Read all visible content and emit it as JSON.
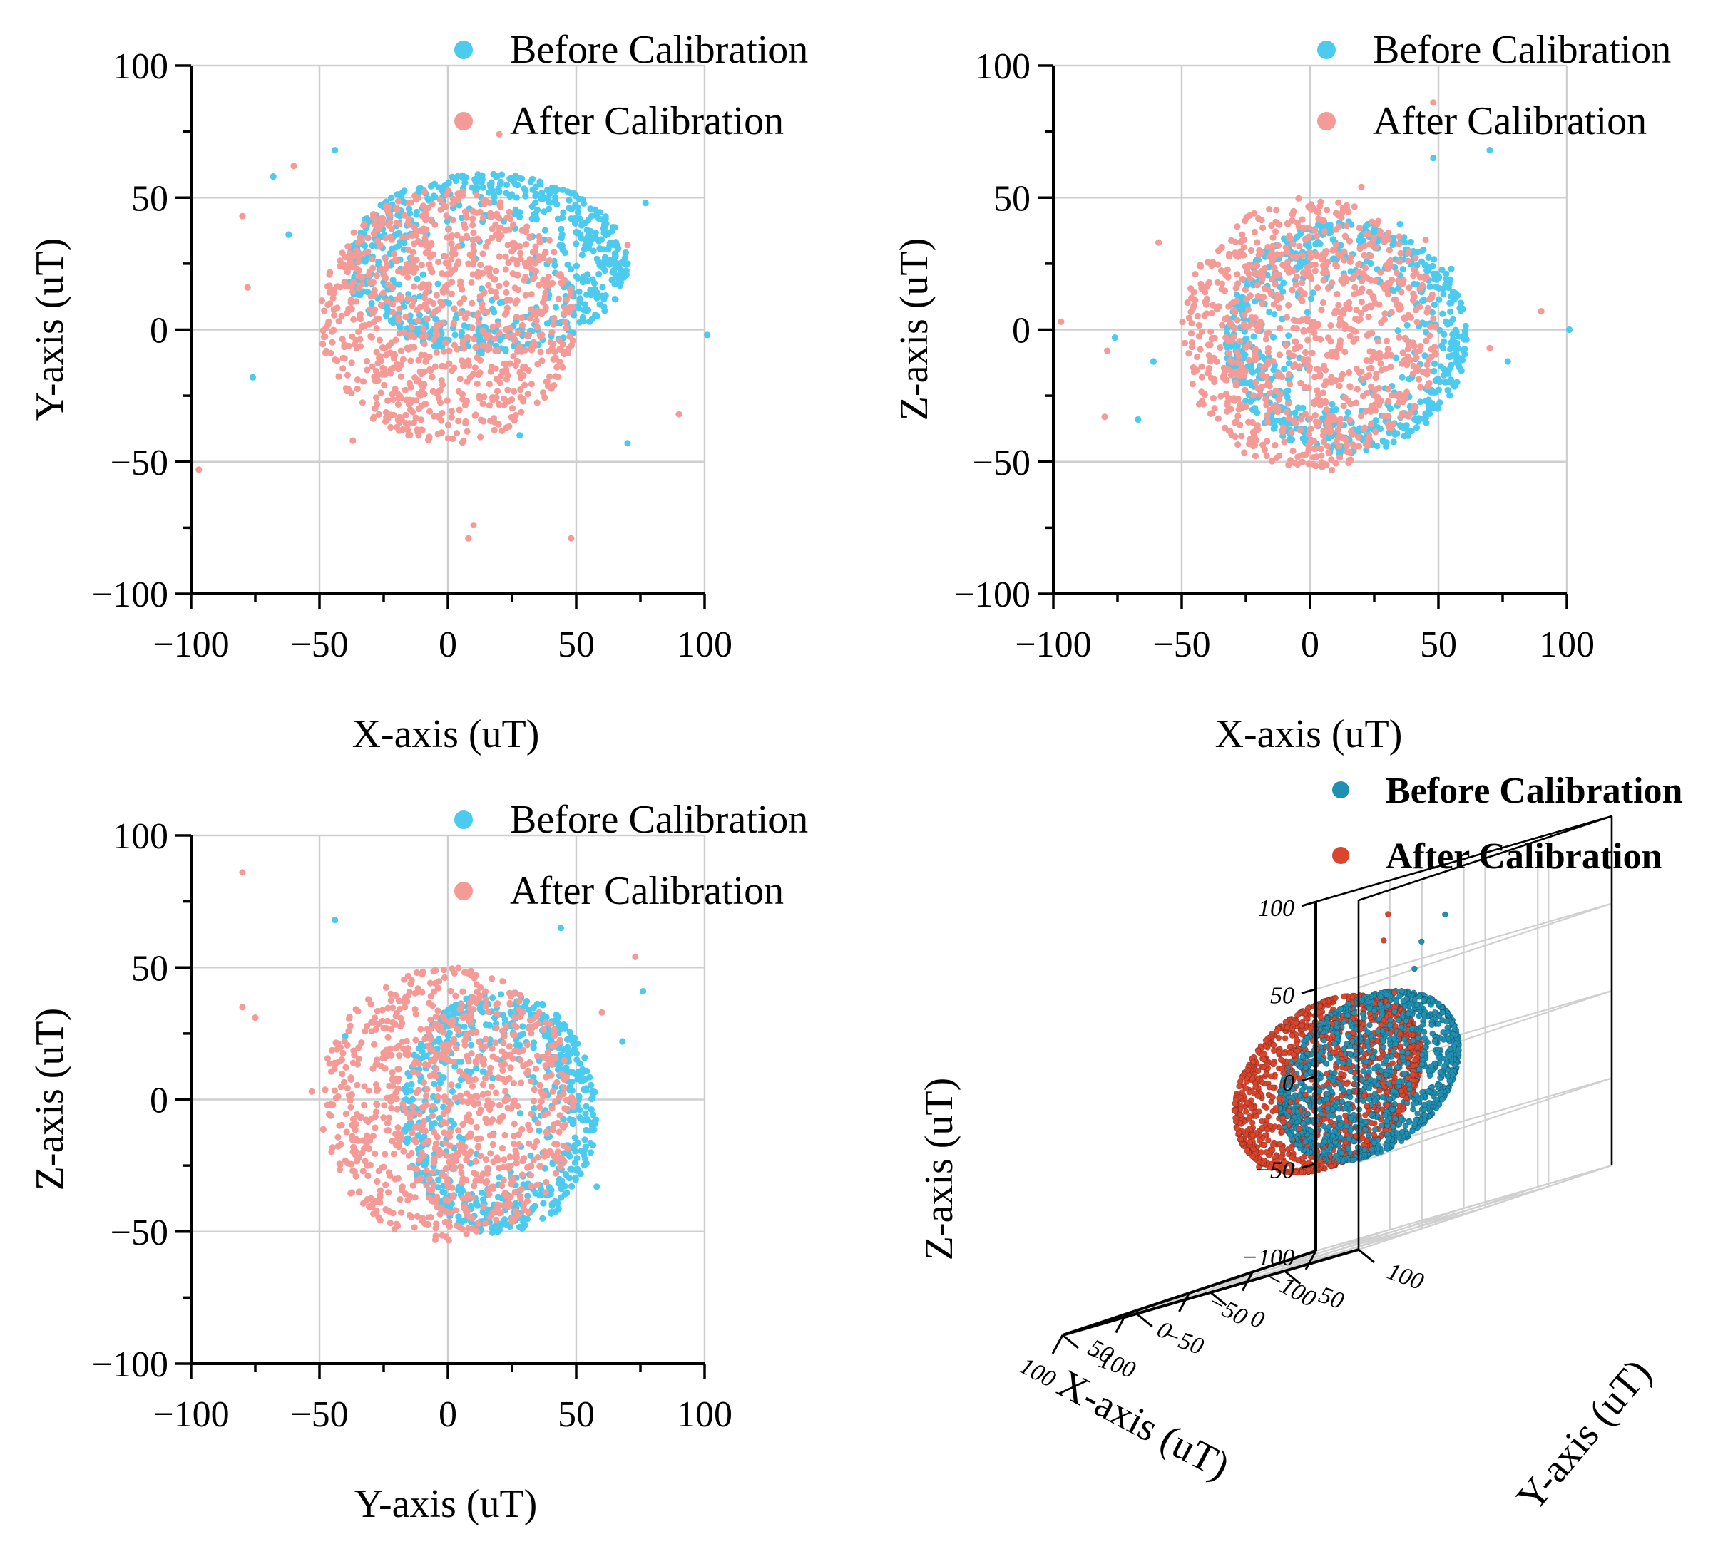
{
  "chart_data": [
    {
      "type": "scatter",
      "id": "xy",
      "xlabel": "X-axis (uT)",
      "ylabel": "Y-axis (uT)",
      "xlim": [
        -100,
        100
      ],
      "ylim": [
        -100,
        100
      ],
      "xticks": [
        "−100",
        "−50",
        "0",
        "50",
        "100"
      ],
      "yticks": [
        "100",
        "50",
        "0",
        "−50",
        "−100"
      ],
      "grid": true,
      "legend_position": "top-right",
      "series": [
        {
          "name": "Before Calibration",
          "color": "#4ccbee",
          "center": [
            15,
            25
          ],
          "radius": [
            55,
            34
          ],
          "count": 700,
          "edge_dense": true,
          "outliers": [
            [
              -68,
              58
            ],
            [
              -44,
              68
            ],
            [
              -62,
              36
            ],
            [
              -76,
              -18
            ],
            [
              77,
              48
            ],
            [
              101,
              -2
            ],
            [
              70,
              -43
            ],
            [
              28,
              -40
            ]
          ]
        },
        {
          "name": "After Calibration",
          "color": "#f59b97",
          "center": [
            0,
            5
          ],
          "radius": [
            50,
            48
          ],
          "count": 900,
          "edge_dense": false,
          "outliers": [
            [
              -60,
              62
            ],
            [
              -80,
              43
            ],
            [
              -78,
              16
            ],
            [
              -97,
              -53
            ],
            [
              -37,
              -42
            ],
            [
              10,
              -74
            ],
            [
              8,
              -79
            ],
            [
              48,
              -79
            ],
            [
              70,
              32
            ],
            [
              90,
              -32
            ],
            [
              20,
              74
            ]
          ]
        }
      ]
    },
    {
      "type": "scatter",
      "id": "xz",
      "xlabel": "X-axis (uT)",
      "ylabel": "Z-axis (uT)",
      "xlim": [
        -100,
        100
      ],
      "ylim": [
        -100,
        100
      ],
      "xticks": [
        "−100",
        "−50",
        "0",
        "50",
        "100"
      ],
      "yticks": [
        "100",
        "50",
        "0",
        "−50",
        "−100"
      ],
      "grid": true,
      "legend_position": "top-right",
      "series": [
        {
          "name": "Before Calibration",
          "color": "#4ccbee",
          "center": [
            14,
            -3
          ],
          "radius": [
            47,
            44
          ],
          "count": 700,
          "edge_dense": true,
          "outliers": [
            [
              -76,
              -3
            ],
            [
              -61,
              -12
            ],
            [
              -67,
              -34
            ],
            [
              48,
              65
            ],
            [
              70,
              68
            ],
            [
              35,
              40
            ],
            [
              55,
              23
            ],
            [
              77,
              -12
            ],
            [
              101,
              0
            ]
          ]
        },
        {
          "name": "After Calibration",
          "color": "#f59b97",
          "center": [
            0,
            -2
          ],
          "radius": [
            50,
            52
          ],
          "count": 900,
          "edge_dense": false,
          "outliers": [
            [
              -97,
              3
            ],
            [
              -79,
              -8
            ],
            [
              -80,
              -33
            ],
            [
              -59,
              33
            ],
            [
              20,
              54
            ],
            [
              45,
              34
            ],
            [
              48,
              86
            ],
            [
              70,
              -7
            ],
            [
              90,
              7
            ]
          ]
        }
      ]
    },
    {
      "type": "scatter",
      "id": "yz",
      "xlabel": "Y-axis (uT)",
      "ylabel": "Z-axis (uT)",
      "xlim": [
        -100,
        100
      ],
      "ylim": [
        -100,
        100
      ],
      "xticks": [
        "−100",
        "−50",
        "0",
        "50",
        "100"
      ],
      "yticks": [
        "100",
        "50",
        "0",
        "−50",
        "−100"
      ],
      "grid": true,
      "legend_position": "top-right",
      "series": [
        {
          "name": "Before Calibration",
          "color": "#4ccbee",
          "center": [
            20,
            -5
          ],
          "radius": [
            38,
            46
          ],
          "count": 700,
          "edge_dense": true,
          "outliers": [
            [
              -44,
              68
            ],
            [
              -40,
              24
            ],
            [
              44,
              65
            ],
            [
              68,
              22
            ],
            [
              76,
              41
            ],
            [
              58,
              -33
            ]
          ]
        },
        {
          "name": "After Calibration",
          "color": "#f59b97",
          "center": [
            0,
            -2
          ],
          "radius": [
            50,
            52
          ],
          "count": 900,
          "edge_dense": false,
          "outliers": [
            [
              -80,
              86
            ],
            [
              -80,
              35
            ],
            [
              -75,
              31
            ],
            [
              -53,
              3
            ],
            [
              60,
              33
            ],
            [
              73,
              54
            ]
          ]
        }
      ]
    },
    {
      "type": "scatter3d",
      "id": "xyz",
      "xlabel": "X-axis (uT)",
      "ylabel": "Y-axis (uT)",
      "zlabel": "Z-axis (uT)",
      "xticks": [
        "−100",
        "−50",
        "0",
        "50",
        "100"
      ],
      "yticks": [
        "−100",
        "−50",
        "0",
        "50",
        "100"
      ],
      "zticks": [
        "−100",
        "−50",
        "0",
        "50",
        "100"
      ],
      "xlim": [
        -100,
        100
      ],
      "ylim": [
        -100,
        100
      ],
      "zlim": [
        -100,
        100
      ],
      "grid": true,
      "legend_position": "top-right",
      "series": [
        {
          "name": "Before Calibration",
          "color": "#1f8fb2"
        },
        {
          "name": "After Calibration",
          "color": "#d9452d"
        }
      ]
    }
  ]
}
